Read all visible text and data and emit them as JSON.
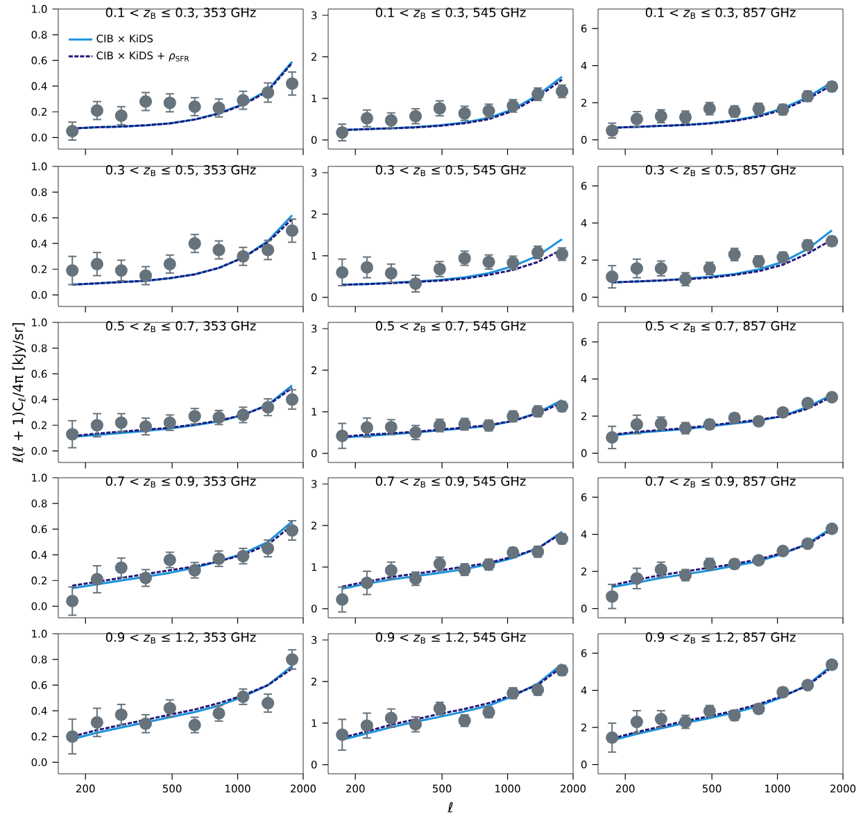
{
  "chart_data": [
    {
      "type": "line",
      "title": "0.1 < *z*$_{B}$ ≤ 0.3, 353 GHz",
      "log": "x",
      "legend": "top left",
      "tick_labels": "y",
      "x": [
        174,
        226,
        292,
        378,
        488,
        635,
        820,
        1059,
        1377,
        1779
      ],
      "xlim": [
        150,
        2000
      ],
      "xticks": [
        200,
        500,
        1000,
        2000
      ],
      "ylim": [
        -0.09,
        1.0
      ],
      "yticks": [
        {
          "value": 0,
          "label": "0.0"
        },
        {
          "value": 0.2,
          "label": "0.2"
        },
        {
          "value": 0.4,
          "label": "0.4"
        },
        {
          "value": 0.6,
          "label": "0.6"
        },
        {
          "value": 0.8,
          "label": "0.8"
        },
        {
          "value": 1,
          "label": "1.0"
        }
      ],
      "series": [
        {
          "name": "CIB × KiDS",
          "color": "#1a93dc",
          "line_style": "solid",
          "values": [
            0.07,
            0.08,
            0.085,
            0.095,
            0.11,
            0.14,
            0.19,
            0.26,
            0.37,
            0.59
          ]
        },
        {
          "name": "CIB × KiDS + *ρ*$_{SFR}$",
          "color": "#20187a",
          "line_style": "dashed",
          "values": [
            0.07,
            0.08,
            0.085,
            0.095,
            0.11,
            0.14,
            0.185,
            0.255,
            0.36,
            0.58
          ]
        },
        {
          "type": "scatter",
          "marker": "circle",
          "color": "#66737c",
          "values": [
            0.05,
            0.21,
            0.17,
            0.28,
            0.27,
            0.24,
            0.23,
            0.29,
            0.35,
            0.42
          ],
          "errors": [
            0.07,
            0.07,
            0.07,
            0.07,
            0.07,
            0.07,
            0.07,
            0.07,
            0.075,
            0.09
          ]
        }
      ]
    },
    {
      "type": "line",
      "title": "0.1 < *z*$_{B}$ ≤ 0.3, 545 GHz",
      "log": "x",
      "tick_labels": "y",
      "x": [
        174,
        226,
        292,
        378,
        488,
        635,
        820,
        1059,
        1377,
        1779
      ],
      "xlim": [
        150,
        2000
      ],
      "xticks": [
        200,
        500,
        1000,
        2000
      ],
      "ylim": [
        -0.22,
        3.15
      ],
      "yticks": [
        0,
        1,
        2,
        3
      ],
      "series": [
        {
          "color": "#1a93dc",
          "line_style": "solid",
          "values": [
            0.24,
            0.26,
            0.28,
            0.31,
            0.35,
            0.42,
            0.53,
            0.74,
            1.08,
            1.52
          ]
        },
        {
          "color": "#20187a",
          "line_style": "dashed",
          "values": [
            0.24,
            0.26,
            0.28,
            0.3,
            0.34,
            0.4,
            0.5,
            0.7,
            1.03,
            1.45
          ]
        },
        {
          "type": "scatter",
          "marker": "circle",
          "color": "#66737c",
          "values": [
            0.18,
            0.52,
            0.47,
            0.57,
            0.76,
            0.64,
            0.7,
            0.82,
            1.1,
            1.17
          ],
          "errors": [
            0.2,
            0.2,
            0.18,
            0.18,
            0.18,
            0.17,
            0.16,
            0.15,
            0.15,
            0.15
          ]
        }
      ]
    },
    {
      "type": "line",
      "title": "0.1 < *z*$_{B}$ ≤ 0.3, 857 GHz",
      "log": "x",
      "tick_labels": "y",
      "x": [
        174,
        226,
        292,
        378,
        488,
        635,
        820,
        1059,
        1377,
        1779
      ],
      "xlim": [
        150,
        2000
      ],
      "xticks": [
        200,
        500,
        1000,
        2000
      ],
      "ylim": [
        -0.5,
        7.05
      ],
      "yticks": [
        0,
        2,
        4,
        6
      ],
      "series": [
        {
          "color": "#1a93dc",
          "line_style": "solid",
          "values": [
            0.65,
            0.7,
            0.75,
            0.8,
            0.9,
            1.05,
            1.3,
            1.7,
            2.3,
            3.1
          ]
        },
        {
          "color": "#20187a",
          "line_style": "dashed",
          "values": [
            0.65,
            0.7,
            0.75,
            0.8,
            0.88,
            1.02,
            1.25,
            1.62,
            2.2,
            2.95
          ]
        },
        {
          "type": "scatter",
          "marker": "circle",
          "color": "#66737c",
          "values": [
            0.5,
            1.12,
            1.27,
            1.22,
            1.68,
            1.53,
            1.67,
            1.63,
            2.35,
            2.87
          ],
          "errors": [
            0.4,
            0.4,
            0.35,
            0.33,
            0.33,
            0.3,
            0.3,
            0.28,
            0.28,
            0.25
          ]
        }
      ]
    },
    {
      "type": "line",
      "title": "0.3 < *z*$_{B}$ ≤ 0.5, 353 GHz",
      "log": "x",
      "tick_labels": "y",
      "x": [
        174,
        226,
        292,
        378,
        488,
        635,
        820,
        1059,
        1377,
        1779
      ],
      "xlim": [
        150,
        2000
      ],
      "xticks": [
        200,
        500,
        1000,
        2000
      ],
      "ylim": [
        -0.09,
        1.0
      ],
      "yticks": [
        {
          "value": 0,
          "label": "0.0"
        },
        {
          "value": 0.2,
          "label": "0.2"
        },
        {
          "value": 0.4,
          "label": "0.4"
        },
        {
          "value": 0.6,
          "label": "0.6"
        },
        {
          "value": 0.8,
          "label": "0.8"
        },
        {
          "value": 1,
          "label": "1.0"
        }
      ],
      "series": [
        {
          "color": "#1a93dc",
          "line_style": "solid",
          "values": [
            0.08,
            0.09,
            0.1,
            0.11,
            0.13,
            0.16,
            0.21,
            0.29,
            0.42,
            0.62
          ]
        },
        {
          "color": "#20187a",
          "line_style": "dashed",
          "values": [
            0.08,
            0.09,
            0.1,
            0.11,
            0.13,
            0.16,
            0.21,
            0.29,
            0.41,
            0.59
          ]
        },
        {
          "type": "scatter",
          "marker": "circle",
          "color": "#66737c",
          "values": [
            0.19,
            0.24,
            0.19,
            0.15,
            0.24,
            0.4,
            0.35,
            0.3,
            0.35,
            0.5
          ],
          "errors": [
            0.11,
            0.09,
            0.08,
            0.07,
            0.07,
            0.07,
            0.07,
            0.07,
            0.075,
            0.09
          ]
        }
      ]
    },
    {
      "type": "line",
      "title": "0.3 < *z*$_{B}$ ≤ 0.5, 545 GHz",
      "log": "x",
      "tick_labels": "y",
      "x": [
        174,
        226,
        292,
        378,
        488,
        635,
        820,
        1059,
        1377,
        1779
      ],
      "xlim": [
        150,
        2000
      ],
      "xticks": [
        200,
        500,
        1000,
        2000
      ],
      "ylim": [
        -0.22,
        3.15
      ],
      "yticks": [
        0,
        1,
        2,
        3
      ],
      "series": [
        {
          "color": "#1a93dc",
          "line_style": "solid",
          "values": [
            0.3,
            0.32,
            0.35,
            0.38,
            0.42,
            0.48,
            0.58,
            0.75,
            1.0,
            1.4
          ]
        },
        {
          "color": "#20187a",
          "line_style": "dashed",
          "values": [
            0.3,
            0.32,
            0.34,
            0.37,
            0.4,
            0.45,
            0.54,
            0.66,
            0.85,
            1.15
          ]
        },
        {
          "type": "scatter",
          "marker": "circle",
          "color": "#66737c",
          "values": [
            0.6,
            0.72,
            0.58,
            0.33,
            0.68,
            0.94,
            0.85,
            0.83,
            1.08,
            1.04
          ],
          "errors": [
            0.32,
            0.25,
            0.22,
            0.2,
            0.18,
            0.17,
            0.17,
            0.16,
            0.15,
            0.15
          ]
        }
      ]
    },
    {
      "type": "line",
      "title": "0.3 < *z*$_{B}$ ≤ 0.5, 857 GHz",
      "log": "x",
      "tick_labels": "y",
      "x": [
        174,
        226,
        292,
        378,
        488,
        635,
        820,
        1059,
        1377,
        1779
      ],
      "xlim": [
        150,
        2000
      ],
      "xticks": [
        200,
        500,
        1000,
        2000
      ],
      "ylim": [
        -0.5,
        7.05
      ],
      "yticks": [
        0,
        2,
        4,
        6
      ],
      "series": [
        {
          "color": "#1a93dc",
          "line_style": "solid",
          "values": [
            0.8,
            0.85,
            0.9,
            1.0,
            1.1,
            1.25,
            1.5,
            1.9,
            2.6,
            3.6
          ]
        },
        {
          "color": "#20187a",
          "line_style": "dashed",
          "values": [
            0.8,
            0.85,
            0.9,
            0.97,
            1.05,
            1.2,
            1.4,
            1.75,
            2.35,
            3.1
          ]
        },
        {
          "type": "scatter",
          "marker": "circle",
          "color": "#66737c",
          "values": [
            1.1,
            1.55,
            1.55,
            0.97,
            1.55,
            2.3,
            1.93,
            2.15,
            2.8,
            3.02
          ],
          "errors": [
            0.6,
            0.5,
            0.4,
            0.35,
            0.33,
            0.33,
            0.3,
            0.28,
            0.28,
            0.25
          ]
        }
      ]
    },
    {
      "type": "line",
      "title": "0.5 < *z*$_{B}$ ≤ 0.7, 353 GHz",
      "ylabel": "ℓ(ℓ + 1)C$_{ℓ}$/4π [kJy/sr]",
      "log": "x",
      "tick_labels": "y",
      "x": [
        174,
        226,
        292,
        378,
        488,
        635,
        820,
        1059,
        1377,
        1779
      ],
      "xlim": [
        150,
        2000
      ],
      "xticks": [
        200,
        500,
        1000,
        2000
      ],
      "ylim": [
        -0.09,
        1.0
      ],
      "yticks": [
        {
          "value": 0,
          "label": "0.0"
        },
        {
          "value": 0.2,
          "label": "0.2"
        },
        {
          "value": 0.4,
          "label": "0.4"
        },
        {
          "value": 0.6,
          "label": "0.6"
        },
        {
          "value": 0.8,
          "label": "0.8"
        },
        {
          "value": 1,
          "label": "1.0"
        }
      ],
      "series": [
        {
          "color": "#1a93dc",
          "line_style": "solid",
          "values": [
            0.11,
            0.125,
            0.14,
            0.155,
            0.175,
            0.2,
            0.23,
            0.28,
            0.36,
            0.51
          ]
        },
        {
          "color": "#20187a",
          "line_style": "dashed",
          "values": [
            0.115,
            0.135,
            0.15,
            0.165,
            0.18,
            0.205,
            0.235,
            0.28,
            0.355,
            0.49
          ]
        },
        {
          "type": "scatter",
          "marker": "circle",
          "color": "#66737c",
          "values": [
            0.13,
            0.2,
            0.22,
            0.19,
            0.22,
            0.27,
            0.26,
            0.28,
            0.34,
            0.4
          ],
          "errors": [
            0.105,
            0.09,
            0.07,
            0.065,
            0.06,
            0.06,
            0.055,
            0.06,
            0.065,
            0.075
          ]
        }
      ]
    },
    {
      "type": "line",
      "title": "0.5 < *z*$_{B}$ ≤ 0.7, 545 GHz",
      "log": "x",
      "tick_labels": "y",
      "x": [
        174,
        226,
        292,
        378,
        488,
        635,
        820,
        1059,
        1377,
        1779
      ],
      "xlim": [
        150,
        2000
      ],
      "xticks": [
        200,
        500,
        1000,
        2000
      ],
      "ylim": [
        -0.22,
        3.15
      ],
      "yticks": [
        0,
        1,
        2,
        3
      ],
      "series": [
        {
          "color": "#1a93dc",
          "line_style": "solid",
          "values": [
            0.38,
            0.42,
            0.46,
            0.5,
            0.55,
            0.6,
            0.66,
            0.78,
            0.98,
            1.28
          ]
        },
        {
          "color": "#20187a",
          "line_style": "dashed",
          "values": [
            0.4,
            0.45,
            0.48,
            0.52,
            0.57,
            0.62,
            0.68,
            0.78,
            0.96,
            1.22
          ]
        },
        {
          "type": "scatter",
          "marker": "circle",
          "color": "#66737c",
          "values": [
            0.42,
            0.62,
            0.63,
            0.5,
            0.67,
            0.7,
            0.67,
            0.89,
            1.01,
            1.13
          ],
          "errors": [
            0.3,
            0.23,
            0.18,
            0.17,
            0.15,
            0.14,
            0.13,
            0.13,
            0.13,
            0.12
          ]
        }
      ]
    },
    {
      "type": "line",
      "title": "0.5 < *z*$_{B}$ ≤ 0.7, 857 GHz",
      "log": "x",
      "tick_labels": "y",
      "x": [
        174,
        226,
        292,
        378,
        488,
        635,
        820,
        1059,
        1377,
        1779
      ],
      "xlim": [
        150,
        2000
      ],
      "xticks": [
        200,
        500,
        1000,
        2000
      ],
      "ylim": [
        -0.5,
        7.05
      ],
      "yticks": [
        0,
        2,
        4,
        6
      ],
      "series": [
        {
          "color": "#1a93dc",
          "line_style": "solid",
          "values": [
            0.95,
            1.1,
            1.2,
            1.3,
            1.45,
            1.6,
            1.75,
            2.0,
            2.5,
            3.15
          ]
        },
        {
          "color": "#20187a",
          "line_style": "dashed",
          "values": [
            1.0,
            1.15,
            1.25,
            1.35,
            1.5,
            1.65,
            1.8,
            2.0,
            2.4,
            3.05
          ]
        },
        {
          "type": "scatter",
          "marker": "circle",
          "color": "#66737c",
          "values": [
            0.85,
            1.55,
            1.6,
            1.35,
            1.55,
            1.9,
            1.72,
            2.2,
            2.7,
            3.02
          ],
          "errors": [
            0.6,
            0.5,
            0.35,
            0.3,
            0.25,
            0.25,
            0.22,
            0.2,
            0.2,
            0.15
          ]
        }
      ]
    },
    {
      "type": "line",
      "title": "0.7 < *z*$_{B}$ ≤ 0.9, 353 GHz",
      "log": "x",
      "tick_labels": "y",
      "x": [
        174,
        226,
        292,
        378,
        488,
        635,
        820,
        1059,
        1377,
        1779
      ],
      "xlim": [
        150,
        2000
      ],
      "xticks": [
        200,
        500,
        1000,
        2000
      ],
      "ylim": [
        -0.09,
        1.0
      ],
      "yticks": [
        {
          "value": 0,
          "label": "0.0"
        },
        {
          "value": 0.2,
          "label": "0.2"
        },
        {
          "value": 0.4,
          "label": "0.4"
        },
        {
          "value": 0.6,
          "label": "0.6"
        },
        {
          "value": 0.8,
          "label": "0.8"
        },
        {
          "value": 1,
          "label": "1.0"
        }
      ],
      "series": [
        {
          "color": "#1a93dc",
          "line_style": "solid",
          "values": [
            0.14,
            0.17,
            0.2,
            0.23,
            0.26,
            0.3,
            0.35,
            0.41,
            0.5,
            0.66
          ]
        },
        {
          "color": "#20187a",
          "line_style": "dashed",
          "values": [
            0.16,
            0.19,
            0.22,
            0.25,
            0.28,
            0.31,
            0.35,
            0.4,
            0.48,
            0.63
          ]
        },
        {
          "type": "scatter",
          "marker": "circle",
          "color": "#66737c",
          "values": [
            0.04,
            0.21,
            0.3,
            0.22,
            0.36,
            0.28,
            0.37,
            0.39,
            0.45,
            0.59
          ],
          "errors": [
            0.11,
            0.105,
            0.075,
            0.065,
            0.06,
            0.06,
            0.06,
            0.06,
            0.065,
            0.075
          ]
        }
      ]
    },
    {
      "type": "line",
      "title": "0.7 < *z*$_{B}$ ≤ 0.9, 545 GHz",
      "log": "x",
      "tick_labels": "y",
      "x": [
        174,
        226,
        292,
        378,
        488,
        635,
        820,
        1059,
        1377,
        1779
      ],
      "xlim": [
        150,
        2000
      ],
      "xticks": [
        200,
        500,
        1000,
        2000
      ],
      "ylim": [
        -0.22,
        3.15
      ],
      "yticks": [
        0,
        1,
        2,
        3
      ],
      "series": [
        {
          "color": "#1a93dc",
          "line_style": "solid",
          "values": [
            0.48,
            0.6,
            0.7,
            0.78,
            0.86,
            0.95,
            1.07,
            1.22,
            1.45,
            1.85
          ]
        },
        {
          "color": "#20187a",
          "line_style": "dashed",
          "values": [
            0.53,
            0.65,
            0.76,
            0.84,
            0.92,
            1.01,
            1.1,
            1.25,
            1.45,
            1.82
          ]
        },
        {
          "type": "scatter",
          "marker": "circle",
          "color": "#66737c",
          "values": [
            0.22,
            0.62,
            0.92,
            0.72,
            1.08,
            0.94,
            1.06,
            1.35,
            1.37,
            1.68
          ],
          "errors": [
            0.3,
            0.28,
            0.2,
            0.16,
            0.16,
            0.14,
            0.13,
            0.12,
            0.13,
            0.12
          ]
        }
      ]
    },
    {
      "type": "line",
      "title": "0.7 < *z*$_{B}$ ≤ 0.9, 857 GHz",
      "log": "x",
      "tick_labels": "y",
      "x": [
        174,
        226,
        292,
        378,
        488,
        635,
        820,
        1059,
        1377,
        1779
      ],
      "xlim": [
        150,
        2000
      ],
      "xticks": [
        200,
        500,
        1000,
        2000
      ],
      "ylim": [
        -0.5,
        7.05
      ],
      "yticks": [
        0,
        2,
        4,
        6
      ],
      "series": [
        {
          "color": "#1a93dc",
          "line_style": "solid",
          "values": [
            1.15,
            1.4,
            1.65,
            1.85,
            2.05,
            2.3,
            2.55,
            2.95,
            3.5,
            4.35
          ]
        },
        {
          "color": "#20187a",
          "line_style": "dashed",
          "values": [
            1.25,
            1.55,
            1.8,
            2.0,
            2.2,
            2.4,
            2.65,
            3.0,
            3.45,
            4.25
          ]
        },
        {
          "type": "scatter",
          "marker": "circle",
          "color": "#66737c",
          "values": [
            0.65,
            1.62,
            2.1,
            1.8,
            2.4,
            2.4,
            2.6,
            3.1,
            3.5,
            4.3
          ],
          "errors": [
            0.65,
            0.55,
            0.4,
            0.3,
            0.3,
            0.25,
            0.22,
            0.2,
            0.2,
            0.18
          ]
        }
      ]
    },
    {
      "type": "line",
      "title": "0.9 < *z*$_{B}$ ≤ 1.2, 353 GHz",
      "log": "x",
      "x": [
        174,
        226,
        292,
        378,
        488,
        635,
        820,
        1059,
        1377,
        1779
      ],
      "xlim": [
        150,
        2000
      ],
      "xticks": [
        200,
        500,
        1000,
        2000
      ],
      "ylim": [
        -0.09,
        1.0
      ],
      "yticks": [
        {
          "value": 0,
          "label": "0.0"
        },
        {
          "value": 0.2,
          "label": "0.2"
        },
        {
          "value": 0.4,
          "label": "0.4"
        },
        {
          "value": 0.6,
          "label": "0.6"
        },
        {
          "value": 0.8,
          "label": "0.8"
        },
        {
          "value": 1,
          "label": "1.0"
        }
      ],
      "series": [
        {
          "color": "#1a93dc",
          "line_style": "solid",
          "values": [
            0.18,
            0.23,
            0.27,
            0.31,
            0.35,
            0.39,
            0.44,
            0.51,
            0.6,
            0.75
          ]
        },
        {
          "color": "#20187a",
          "line_style": "dashed",
          "values": [
            0.2,
            0.25,
            0.29,
            0.33,
            0.37,
            0.41,
            0.46,
            0.52,
            0.6,
            0.73
          ]
        },
        {
          "type": "scatter",
          "marker": "circle",
          "color": "#66737c",
          "values": [
            0.2,
            0.31,
            0.37,
            0.3,
            0.42,
            0.29,
            0.38,
            0.51,
            0.46,
            0.8
          ],
          "errors": [
            0.135,
            0.11,
            0.08,
            0.07,
            0.065,
            0.06,
            0.06,
            0.06,
            0.07,
            0.075
          ]
        }
      ]
    },
    {
      "type": "line",
      "title": "0.9 < *z*$_{B}$ ≤ 1.2, 545 GHz",
      "xlabel": "*ℓ*",
      "log": "x",
      "x": [
        174,
        226,
        292,
        378,
        488,
        635,
        820,
        1059,
        1377,
        1779
      ],
      "xlim": [
        150,
        2000
      ],
      "xticks": [
        200,
        500,
        1000,
        2000
      ],
      "ylim": [
        -0.22,
        3.15
      ],
      "yticks": [
        0,
        1,
        2,
        3
      ],
      "series": [
        {
          "color": "#1a93dc",
          "line_style": "solid",
          "values": [
            0.6,
            0.75,
            0.9,
            1.03,
            1.15,
            1.28,
            1.42,
            1.65,
            1.95,
            2.42
          ]
        },
        {
          "color": "#20187a",
          "line_style": "dashed",
          "values": [
            0.65,
            0.8,
            0.96,
            1.09,
            1.22,
            1.34,
            1.48,
            1.68,
            1.92,
            2.35
          ]
        },
        {
          "type": "scatter",
          "marker": "circle",
          "color": "#66737c",
          "values": [
            0.72,
            0.94,
            1.12,
            0.97,
            1.35,
            1.06,
            1.26,
            1.72,
            1.8,
            2.27
          ],
          "errors": [
            0.37,
            0.3,
            0.22,
            0.18,
            0.15,
            0.14,
            0.13,
            0.13,
            0.13,
            0.12
          ]
        }
      ]
    },
    {
      "type": "line",
      "title": "0.9 < *z*$_{B}$ ≤ 1.2, 857 GHz",
      "log": "x",
      "x": [
        174,
        226,
        292,
        378,
        488,
        635,
        820,
        1059,
        1377,
        1779
      ],
      "xlim": [
        150,
        2000
      ],
      "xticks": [
        200,
        500,
        1000,
        2000
      ],
      "ylim": [
        -0.5,
        7.05
      ],
      "yticks": [
        0,
        2,
        4,
        6
      ],
      "series": [
        {
          "color": "#1a93dc",
          "line_style": "solid",
          "values": [
            1.3,
            1.65,
            1.95,
            2.25,
            2.5,
            2.8,
            3.15,
            3.65,
            4.3,
            5.35
          ]
        },
        {
          "color": "#20187a",
          "line_style": "dashed",
          "values": [
            1.4,
            1.75,
            2.05,
            2.35,
            2.6,
            2.9,
            3.25,
            3.7,
            4.25,
            5.25
          ]
        },
        {
          "type": "scatter",
          "marker": "circle",
          "color": "#66737c",
          "values": [
            1.45,
            2.3,
            2.45,
            2.3,
            2.88,
            2.65,
            3.0,
            3.9,
            4.28,
            5.38
          ],
          "errors": [
            0.78,
            0.6,
            0.45,
            0.35,
            0.3,
            0.28,
            0.25,
            0.25,
            0.22,
            0.18
          ]
        }
      ]
    }
  ]
}
